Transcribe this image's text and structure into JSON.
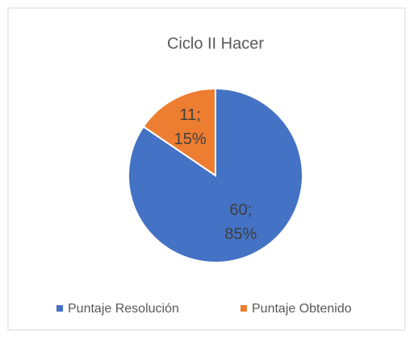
{
  "chart_data": {
    "type": "pie",
    "title": "Ciclo II Hacer",
    "categories": [
      "Puntaje Resolución",
      "Puntaje Obtenido"
    ],
    "values": [
      60,
      11
    ],
    "value_labels": [
      "60; 85%",
      "11; 15%"
    ],
    "colors": [
      "#4472c4",
      "#ed7d31"
    ],
    "legend": "bottom"
  }
}
